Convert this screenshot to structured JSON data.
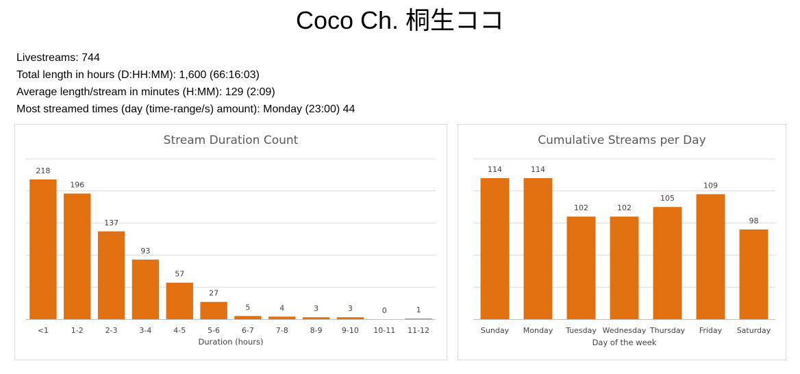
{
  "page": {
    "title": "Coco Ch. 桐生ココ",
    "stats": [
      "Livestreams: 744",
      "Total length in hours (D:HH:MM): 1,600 (66:16:03)",
      "Average length/stream in minutes (H:MM): 129 (2:09)",
      "Most streamed times (day (time-range/s) amount): Monday (23:00) 44"
    ]
  },
  "chart_data": [
    {
      "type": "bar",
      "title": "Stream Duration Count",
      "xlabel": "Duration (hours)",
      "ylabel": "",
      "categories": [
        "<1",
        "1-2",
        "2-3",
        "3-4",
        "4-5",
        "5-6",
        "6-7",
        "7-8",
        "8-9",
        "9-10",
        "10-11",
        "11-12"
      ],
      "values": [
        218,
        196,
        137,
        93,
        57,
        27,
        5,
        4,
        3,
        3,
        0,
        1
      ],
      "ylim": [
        0,
        250
      ],
      "grid": true,
      "bar_color": "#e07010"
    },
    {
      "type": "bar",
      "title": "Cumulative Streams per Day",
      "xlabel": "Day of the week",
      "ylabel": "",
      "categories": [
        "Sunday",
        "Monday",
        "Tuesday",
        "Wednesday",
        "Thursday",
        "Friday",
        "Saturday"
      ],
      "values": [
        114,
        114,
        102,
        102,
        105,
        109,
        98
      ],
      "ylim": [
        70,
        120
      ],
      "grid": true,
      "bar_color": "#e07010"
    }
  ]
}
